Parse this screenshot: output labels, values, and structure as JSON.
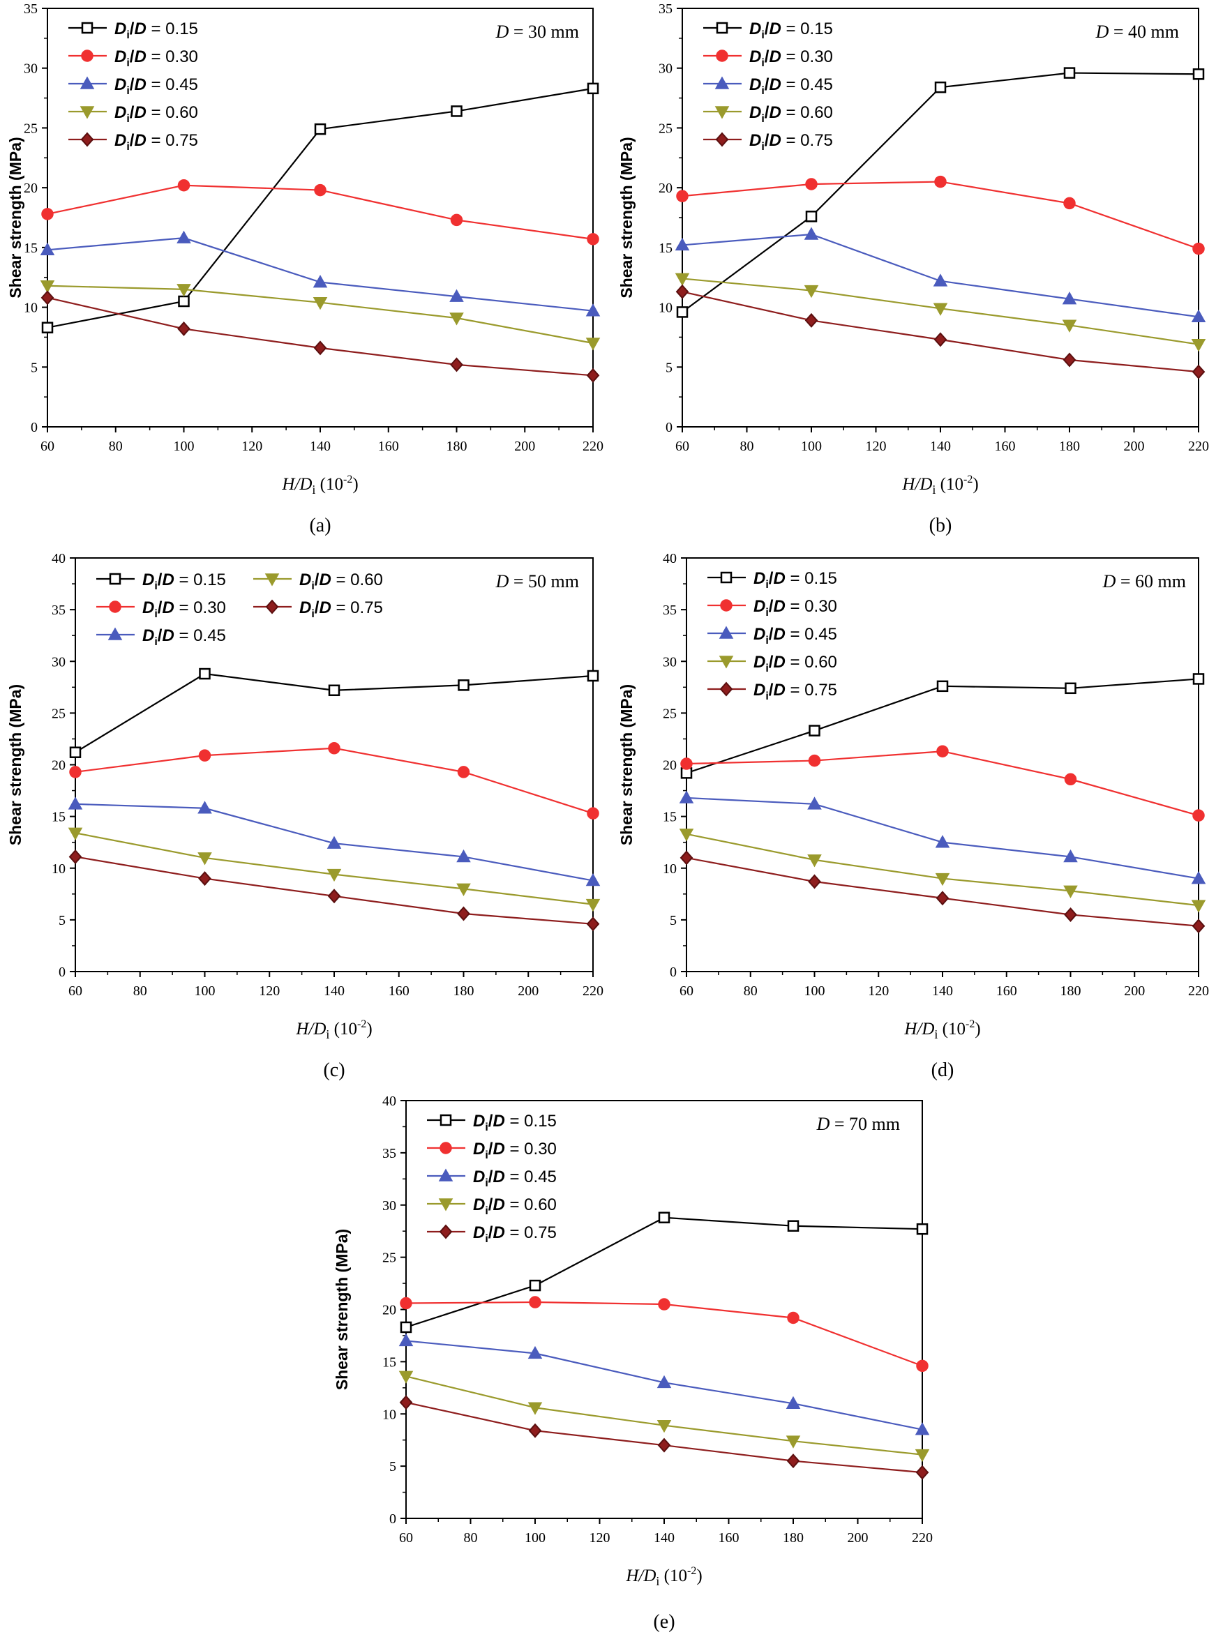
{
  "figure": {
    "ylabel": "Shear strength (MPa)",
    "xlabel_var": "H/D",
    "xlabel_sub": "i",
    "xlabel_unit": "(10",
    "xlabel_exp": "-2",
    "xlabel_close": ")",
    "legend_prefix": "D",
    "legend_sub": "i",
    "legend_mid": "/D = ",
    "d_var": "D",
    "d_eq": " = "
  },
  "colors": {
    "s015": "#000000",
    "s030": "#f03030",
    "s045": "#4a5bbd",
    "s060": "#9a9a2c",
    "s075": "#8e1d1d"
  },
  "chart_data": [
    {
      "type": "line",
      "panel": "(a)",
      "d_value": "30 mm",
      "x": [
        60,
        100,
        140,
        180,
        220
      ],
      "xticks": [
        "60",
        "80",
        "100",
        "120",
        "140",
        "160",
        "180",
        "200",
        "220"
      ],
      "xlim": [
        60,
        220
      ],
      "ylim": [
        0,
        35
      ],
      "yticks": [
        "0",
        "5",
        "10",
        "15",
        "20",
        "25",
        "30",
        "35"
      ],
      "legend_layout": "single-column top-left",
      "series": [
        {
          "name": "0.15",
          "marker": "square",
          "values": [
            8.3,
            10.5,
            24.9,
            26.4,
            28.3
          ]
        },
        {
          "name": "0.30",
          "marker": "circle",
          "values": [
            17.8,
            20.2,
            19.8,
            17.3,
            15.7
          ]
        },
        {
          "name": "0.45",
          "marker": "triangle-up",
          "values": [
            14.8,
            15.8,
            12.1,
            10.9,
            9.7
          ]
        },
        {
          "name": "0.60",
          "marker": "triangle-down",
          "values": [
            11.8,
            11.5,
            10.4,
            9.1,
            7.0
          ]
        },
        {
          "name": "0.75",
          "marker": "diamond",
          "values": [
            10.8,
            8.2,
            6.6,
            5.2,
            4.3
          ]
        }
      ]
    },
    {
      "type": "line",
      "panel": "(b)",
      "d_value": "40 mm",
      "x": [
        60,
        100,
        140,
        180,
        220
      ],
      "xticks": [
        "60",
        "80",
        "100",
        "120",
        "140",
        "160",
        "180",
        "200",
        "220"
      ],
      "xlim": [
        60,
        220
      ],
      "ylim": [
        0,
        35
      ],
      "yticks": [
        "0",
        "5",
        "10",
        "15",
        "20",
        "25",
        "30",
        "35"
      ],
      "legend_layout": "single-column top-left",
      "series": [
        {
          "name": "0.15",
          "marker": "square",
          "values": [
            9.6,
            17.6,
            28.4,
            29.6,
            29.5
          ]
        },
        {
          "name": "0.30",
          "marker": "circle",
          "values": [
            19.3,
            20.3,
            20.5,
            18.7,
            14.9
          ]
        },
        {
          "name": "0.45",
          "marker": "triangle-up",
          "values": [
            15.2,
            16.1,
            12.2,
            10.7,
            9.2
          ]
        },
        {
          "name": "0.60",
          "marker": "triangle-down",
          "values": [
            12.4,
            11.4,
            9.9,
            8.5,
            6.9
          ]
        },
        {
          "name": "0.75",
          "marker": "diamond",
          "values": [
            11.3,
            8.9,
            7.3,
            5.6,
            4.6
          ]
        }
      ]
    },
    {
      "type": "line",
      "panel": "(c)",
      "d_value": "50 mm",
      "x": [
        60,
        100,
        140,
        180,
        220
      ],
      "xticks": [
        "60",
        "80",
        "100",
        "120",
        "140",
        "160",
        "180",
        "200",
        "220"
      ],
      "xlim": [
        60,
        220
      ],
      "ylim": [
        0,
        40
      ],
      "yticks": [
        "0",
        "5",
        "10",
        "15",
        "20",
        "25",
        "30",
        "35",
        "40"
      ],
      "legend_layout": "two-column top-left",
      "series": [
        {
          "name": "0.15",
          "marker": "square",
          "values": [
            21.2,
            28.8,
            27.2,
            27.7,
            28.6
          ]
        },
        {
          "name": "0.30",
          "marker": "circle",
          "values": [
            19.3,
            20.9,
            21.6,
            19.3,
            15.3
          ]
        },
        {
          "name": "0.45",
          "marker": "triangle-up",
          "values": [
            16.2,
            15.8,
            12.4,
            11.1,
            8.8
          ]
        },
        {
          "name": "0.60",
          "marker": "triangle-down",
          "values": [
            13.4,
            11.0,
            9.4,
            8.0,
            6.5
          ]
        },
        {
          "name": "0.75",
          "marker": "diamond",
          "values": [
            11.1,
            9.0,
            7.3,
            5.6,
            4.6
          ]
        }
      ]
    },
    {
      "type": "line",
      "panel": "(d)",
      "d_value": "60 mm",
      "x": [
        60,
        100,
        140,
        180,
        220
      ],
      "xticks": [
        "60",
        "80",
        "100",
        "120",
        "140",
        "160",
        "180",
        "200",
        "220"
      ],
      "xlim": [
        60,
        220
      ],
      "ylim": [
        0,
        40
      ],
      "yticks": [
        "0",
        "5",
        "10",
        "15",
        "20",
        "25",
        "30",
        "35",
        "40"
      ],
      "legend_layout": "single-column top-left",
      "series": [
        {
          "name": "0.15",
          "marker": "square",
          "values": [
            19.2,
            23.3,
            27.6,
            27.4,
            28.3
          ]
        },
        {
          "name": "0.30",
          "marker": "circle",
          "values": [
            20.1,
            20.4,
            21.3,
            18.6,
            15.1
          ]
        },
        {
          "name": "0.45",
          "marker": "triangle-up",
          "values": [
            16.8,
            16.2,
            12.5,
            11.1,
            9.0
          ]
        },
        {
          "name": "0.60",
          "marker": "triangle-down",
          "values": [
            13.3,
            10.8,
            9.0,
            7.8,
            6.4
          ]
        },
        {
          "name": "0.75",
          "marker": "diamond",
          "values": [
            11.0,
            8.7,
            7.1,
            5.5,
            4.4
          ]
        }
      ]
    },
    {
      "type": "line",
      "panel": "(e)",
      "d_value": "70 mm",
      "x": [
        60,
        100,
        140,
        180,
        220
      ],
      "xticks": [
        "60",
        "80",
        "100",
        "120",
        "140",
        "160",
        "180",
        "200",
        "220"
      ],
      "xlim": [
        60,
        220
      ],
      "ylim": [
        0,
        40
      ],
      "yticks": [
        "0",
        "5",
        "10",
        "15",
        "20",
        "25",
        "30",
        "35",
        "40"
      ],
      "legend_layout": "single-column top-left",
      "series": [
        {
          "name": "0.15",
          "marker": "square",
          "values": [
            18.3,
            22.3,
            28.8,
            28.0,
            27.7
          ]
        },
        {
          "name": "0.30",
          "marker": "circle",
          "values": [
            20.6,
            20.7,
            20.5,
            19.2,
            14.6
          ]
        },
        {
          "name": "0.45",
          "marker": "triangle-up",
          "values": [
            17.0,
            15.8,
            13.0,
            11.0,
            8.5
          ]
        },
        {
          "name": "0.60",
          "marker": "triangle-down",
          "values": [
            13.6,
            10.6,
            8.9,
            7.4,
            6.1
          ]
        },
        {
          "name": "0.75",
          "marker": "diamond",
          "values": [
            11.1,
            8.4,
            7.0,
            5.5,
            4.4
          ]
        }
      ]
    }
  ]
}
